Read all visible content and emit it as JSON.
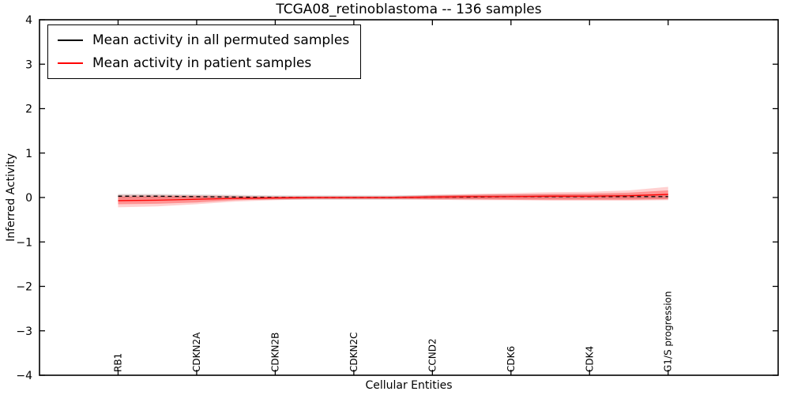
{
  "chart_data": {
    "type": "line",
    "title": "TCGA08_retinoblastoma -- 136 samples",
    "xlabel": "Cellular Entities",
    "ylabel": "Inferred Activity",
    "xlim": [
      -1,
      8.4
    ],
    "ylim": [
      -4,
      4
    ],
    "grid": false,
    "legend_position": "upper-left",
    "yticks": [
      {
        "v": -4,
        "label": "−4"
      },
      {
        "v": -3,
        "label": "−3"
      },
      {
        "v": -2,
        "label": "−2"
      },
      {
        "v": -1,
        "label": "−1"
      },
      {
        "v": 0,
        "label": "0"
      },
      {
        "v": 1,
        "label": "1"
      },
      {
        "v": 2,
        "label": "2"
      },
      {
        "v": 3,
        "label": "3"
      },
      {
        "v": 4,
        "label": "4"
      }
    ],
    "categories": [
      {
        "label": "RB1",
        "x": 0
      },
      {
        "label": "CDKN2A",
        "x": 1
      },
      {
        "label": "CDKN2B",
        "x": 2
      },
      {
        "label": "CDKN2C",
        "x": 3
      },
      {
        "label": "CCND2",
        "x": 4
      },
      {
        "label": "CDK6",
        "x": 5
      },
      {
        "label": "CDK4",
        "x": 6
      },
      {
        "label": "G1/S progression",
        "x": 7
      }
    ],
    "series": [
      {
        "id": "permuted",
        "name": "Mean activity in all permuted samples",
        "color": "#000000",
        "dash": "5,4",
        "x": [
          0,
          0.5,
          1,
          1.5,
          2,
          2.5,
          3,
          3.5,
          4,
          4.5,
          5,
          5.5,
          6,
          6.5,
          7
        ],
        "y": [
          0.03,
          0.03,
          0.02,
          0.01,
          0.0,
          0.0,
          0.0,
          0.0,
          0.01,
          0.01,
          0.02,
          0.02,
          0.02,
          0.02,
          0.02
        ]
      },
      {
        "id": "patient",
        "name": "Mean activity in patient samples",
        "color": "#ff0000",
        "dash": "",
        "x": [
          0,
          0.5,
          1,
          1.5,
          2,
          2.5,
          3,
          3.5,
          4,
          4.5,
          5,
          5.5,
          6,
          6.5,
          7
        ],
        "y": [
          -0.07,
          -0.06,
          -0.04,
          -0.02,
          -0.01,
          0.0,
          0.0,
          0.0,
          0.01,
          0.02,
          0.02,
          0.03,
          0.03,
          0.04,
          0.07
        ]
      }
    ],
    "bands": [
      {
        "id": "permuted-spread",
        "color": "#999999",
        "opacity": 0.3,
        "x": [
          0,
          0.5,
          1,
          1.5,
          2,
          2.5,
          3,
          3.5,
          4,
          4.5,
          5,
          5.5,
          6,
          6.5,
          7
        ],
        "lower": [
          -0.02,
          -0.02,
          -0.03,
          -0.04,
          -0.05,
          -0.05,
          -0.05,
          -0.05,
          -0.04,
          -0.04,
          -0.03,
          -0.03,
          -0.03,
          -0.03,
          -0.03
        ],
        "upper": [
          0.08,
          0.08,
          0.07,
          0.06,
          0.05,
          0.05,
          0.05,
          0.05,
          0.06,
          0.06,
          0.07,
          0.07,
          0.07,
          0.07,
          0.07
        ]
      },
      {
        "id": "patient-spread-outer",
        "color": "#ff0000",
        "opacity": 0.18,
        "x": [
          0,
          0.5,
          1,
          1.5,
          2,
          2.5,
          3,
          3.5,
          4,
          4.5,
          5,
          5.5,
          6,
          6.5,
          7
        ],
        "lower": [
          -0.22,
          -0.2,
          -0.15,
          -0.09,
          -0.06,
          -0.04,
          -0.04,
          -0.04,
          -0.05,
          -0.06,
          -0.06,
          -0.07,
          -0.07,
          -0.07,
          -0.06
        ],
        "upper": [
          0.06,
          0.06,
          0.05,
          0.04,
          0.03,
          0.03,
          0.03,
          0.03,
          0.06,
          0.08,
          0.1,
          0.12,
          0.13,
          0.16,
          0.24
        ]
      },
      {
        "id": "patient-spread-inner",
        "color": "#ff0000",
        "opacity": 0.3,
        "x": [
          0,
          0.5,
          1,
          1.5,
          2,
          2.5,
          3,
          3.5,
          4,
          4.5,
          5,
          5.5,
          6,
          6.5,
          7
        ],
        "lower": [
          -0.15,
          -0.14,
          -0.11,
          -0.06,
          -0.04,
          -0.03,
          -0.03,
          -0.03,
          -0.04,
          -0.04,
          -0.05,
          -0.05,
          -0.05,
          -0.05,
          -0.04
        ],
        "upper": [
          0.02,
          0.03,
          0.03,
          0.02,
          0.02,
          0.02,
          0.02,
          0.02,
          0.04,
          0.06,
          0.07,
          0.08,
          0.09,
          0.11,
          0.16
        ]
      }
    ]
  }
}
